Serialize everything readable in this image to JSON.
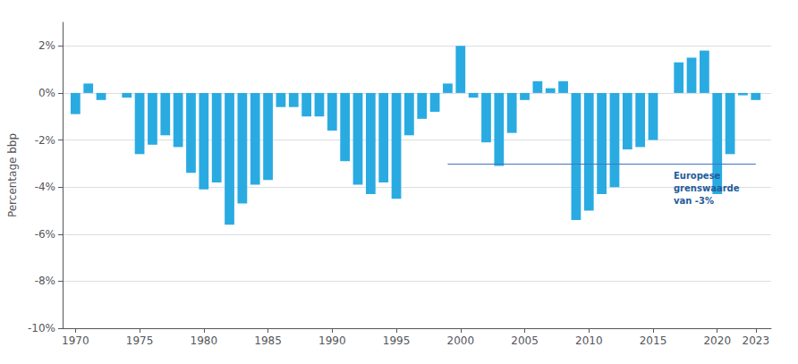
{
  "chart_data": {
    "type": "bar",
    "x": [
      1970,
      1971,
      1972,
      1973,
      1974,
      1975,
      1976,
      1977,
      1978,
      1979,
      1980,
      1981,
      1982,
      1983,
      1984,
      1985,
      1986,
      1987,
      1988,
      1989,
      1990,
      1991,
      1992,
      1993,
      1994,
      1995,
      1996,
      1997,
      1998,
      1999,
      2000,
      2001,
      2002,
      2003,
      2004,
      2005,
      2006,
      2007,
      2008,
      2009,
      2010,
      2011,
      2012,
      2013,
      2014,
      2015,
      2016,
      2017,
      2018,
      2019,
      2020,
      2021,
      2022,
      2023
    ],
    "values": [
      -0.9,
      0.4,
      -0.3,
      0.0,
      -0.2,
      -2.6,
      -2.2,
      -1.8,
      -2.3,
      -3.4,
      -4.1,
      -3.8,
      -5.6,
      -4.7,
      -3.9,
      -3.7,
      -0.6,
      -0.6,
      -1.0,
      -1.0,
      -1.6,
      -2.9,
      -3.9,
      -4.3,
      -3.8,
      -4.5,
      -1.8,
      -1.1,
      -0.8,
      0.4,
      2.0,
      -0.2,
      -2.1,
      -3.1,
      -1.7,
      -0.3,
      0.5,
      0.2,
      0.5,
      -5.4,
      -5.0,
      -4.3,
      -4.0,
      -2.4,
      -2.3,
      -2.0,
      0.0,
      1.3,
      1.5,
      1.8,
      -4.3,
      -2.6,
      -0.1,
      -0.3
    ],
    "color": "#29ABE2",
    "ylabel": "Percentage bbp",
    "xlim": [
      1969.0,
      2024.2
    ],
    "xticks": [
      1970,
      1975,
      1980,
      1985,
      1990,
      1995,
      2000,
      2005,
      2010,
      2015,
      2020,
      2023
    ],
    "ylim": [
      -10,
      3
    ],
    "yticks": [
      {
        "value": -10,
        "label": "-10%"
      },
      {
        "value": -8,
        "label": "-8%"
      },
      {
        "value": -6,
        "label": "-6%"
      },
      {
        "value": -4,
        "label": "-4%"
      },
      {
        "value": -2,
        "label": "-2%"
      },
      {
        "value": 0,
        "label": "0%"
      },
      {
        "value": 2,
        "label": "2%"
      }
    ],
    "grid": true,
    "reference_line": {
      "y": -3.0,
      "x_start": 1999,
      "x_end": 2023,
      "color": "#4472C4"
    },
    "annotation": {
      "text": "Europese\ngrenswaarde\nvan -3%",
      "x": 2016.6,
      "y": -3.25,
      "color": "#1F5C99"
    }
  }
}
